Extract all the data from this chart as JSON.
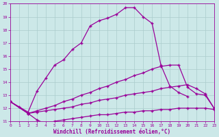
{
  "xlabel": "Windchill (Refroidissement éolien,°C)",
  "xlim": [
    0,
    23
  ],
  "ylim": [
    11,
    20
  ],
  "xticks": [
    0,
    1,
    2,
    3,
    4,
    5,
    6,
    7,
    8,
    9,
    10,
    11,
    12,
    13,
    14,
    15,
    16,
    17,
    18,
    19,
    20,
    21,
    22,
    23
  ],
  "yticks": [
    11,
    12,
    13,
    14,
    15,
    16,
    17,
    18,
    19,
    20
  ],
  "bg_color": "#cce8e8",
  "grid_color": "#aacccc",
  "line_color": "#990099",
  "line1_x": [
    0,
    1,
    2,
    3,
    4,
    5,
    6,
    7,
    8,
    9,
    10,
    11,
    12,
    13,
    14,
    15,
    16,
    17,
    18,
    19,
    20
  ],
  "line1_y": [
    12.5,
    12.1,
    11.7,
    13.3,
    14.3,
    15.3,
    15.7,
    16.5,
    17.0,
    18.3,
    18.7,
    18.9,
    19.2,
    19.7,
    19.7,
    19.0,
    18.5,
    15.3,
    13.7,
    13.2,
    12.9
  ],
  "line2_x": [
    0,
    2,
    3,
    4,
    5,
    6,
    7,
    8,
    9,
    10,
    11,
    12,
    13,
    14,
    15,
    16,
    17,
    18,
    19,
    20,
    21,
    22,
    23
  ],
  "line2_y": [
    12.5,
    11.6,
    11.8,
    12.0,
    12.2,
    12.5,
    12.7,
    13.0,
    13.2,
    13.5,
    13.7,
    14.0,
    14.2,
    14.5,
    14.7,
    15.0,
    15.2,
    15.3,
    15.3,
    13.6,
    13.1,
    13.0,
    12.0
  ],
  "line3_x": [
    0,
    2,
    3,
    4,
    5,
    6,
    7,
    8,
    9,
    10,
    11,
    12,
    13,
    14,
    15,
    16,
    17,
    18,
    19,
    20,
    21,
    22,
    23
  ],
  "line3_y": [
    12.5,
    11.6,
    11.7,
    11.8,
    11.9,
    12.0,
    12.1,
    12.3,
    12.4,
    12.6,
    12.7,
    12.8,
    13.0,
    13.1,
    13.2,
    13.3,
    13.5,
    13.6,
    13.7,
    13.8,
    13.5,
    13.1,
    12.0
  ],
  "line4_x": [
    0,
    2,
    3,
    4,
    5,
    6,
    7,
    8,
    9,
    10,
    11,
    12,
    13,
    14,
    15,
    16,
    17,
    18,
    19,
    20,
    21,
    22,
    23
  ],
  "line4_y": [
    12.5,
    11.6,
    11.1,
    10.8,
    11.0,
    11.1,
    11.2,
    11.3,
    11.4,
    11.5,
    11.5,
    11.6,
    11.7,
    11.7,
    11.8,
    11.8,
    11.9,
    11.9,
    12.0,
    12.0,
    12.0,
    12.0,
    11.9
  ],
  "marker": "+",
  "markersize": 3,
  "linewidth": 0.9
}
